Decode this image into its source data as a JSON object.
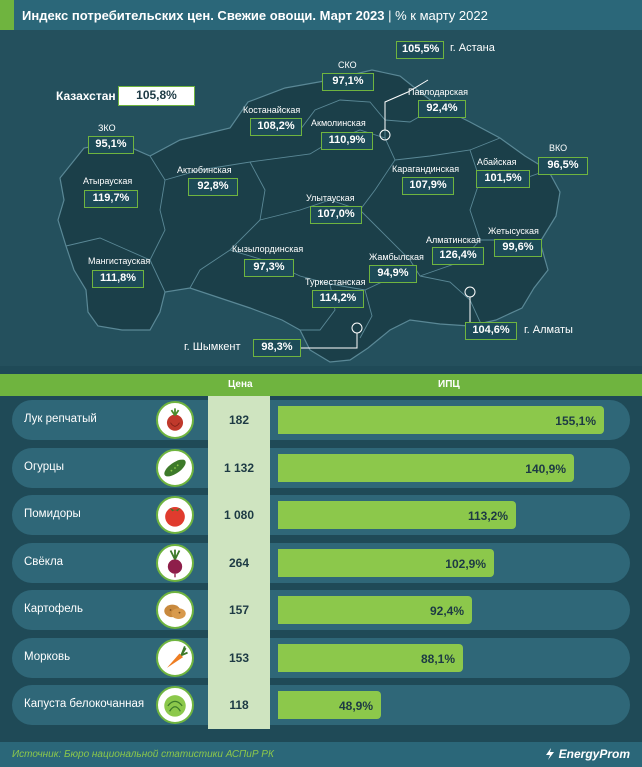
{
  "title": {
    "main": "Индекс потребительских цен. Свежие овощи. Март 2023",
    "separator": " | ",
    "sub": "% к марту 2022"
  },
  "map": {
    "country_label": "Казахстан",
    "country_value": "105,8%",
    "regions": [
      {
        "name": "СКО",
        "value": "97,1%"
      },
      {
        "name": "Павлодарская",
        "value": "92,4%"
      },
      {
        "name": "Костанайская",
        "value": "108,2%"
      },
      {
        "name": "Акмолинская",
        "value": "110,9%"
      },
      {
        "name": "ЗКО",
        "value": "95,1%"
      },
      {
        "name": "Актюбинская",
        "value": "92,8%"
      },
      {
        "name": "Атырауская",
        "value": "119,7%"
      },
      {
        "name": "Карагандинская",
        "value": "107,9%"
      },
      {
        "name": "Абайская",
        "value": "101,5%"
      },
      {
        "name": "ВКО",
        "value": "96,5%"
      },
      {
        "name": "Улытауская",
        "value": "107,0%"
      },
      {
        "name": "Мангистауская",
        "value": "111,8%"
      },
      {
        "name": "Кызылординская",
        "value": "97,3%"
      },
      {
        "name": "Жамбылская",
        "value": "94,9%"
      },
      {
        "name": "Алматинская",
        "value": "126,4%"
      },
      {
        "name": "Жетысуская",
        "value": "99,6%"
      },
      {
        "name": "Туркестанская",
        "value": "114,2%"
      }
    ],
    "cities": [
      {
        "name": "г. Астана",
        "value": "105,5%"
      },
      {
        "name": "г. Алматы",
        "value": "104,6%"
      },
      {
        "name": "г. Шымкент",
        "value": "98,3%"
      }
    ]
  },
  "table": {
    "col_price": "Цена",
    "col_cpi": "ИПЦ"
  },
  "chart_data": {
    "type": "bar",
    "categories": [
      "Лук репчатый",
      "Огурцы",
      "Помидоры",
      "Свёкла",
      "Картофель",
      "Морковь",
      "Капуста белокочанная"
    ],
    "prices": [
      "182",
      "1 132",
      "1 080",
      "264",
      "157",
      "153",
      "118"
    ],
    "values": [
      155.1,
      140.9,
      113.2,
      102.9,
      92.4,
      88.1,
      48.9
    ],
    "value_labels": [
      "155,1%",
      "140,9%",
      "113,2%",
      "102,9%",
      "92,4%",
      "88,1%",
      "48,9%"
    ],
    "icons": [
      "onion-icon",
      "cucumber-icon",
      "tomato-icon",
      "beet-icon",
      "potato-icon",
      "carrot-icon",
      "cabbage-icon"
    ],
    "bar_color": "#8cc84b"
  },
  "footer": {
    "source": "Источник: Бюро национальной статистики АСПиР РК",
    "brand": "EnergyProm"
  },
  "colors": {
    "background": "#1f4a57",
    "accent_green": "#6fb43f",
    "bar_green": "#8cc84b",
    "map_fill": "#1b3f49"
  }
}
